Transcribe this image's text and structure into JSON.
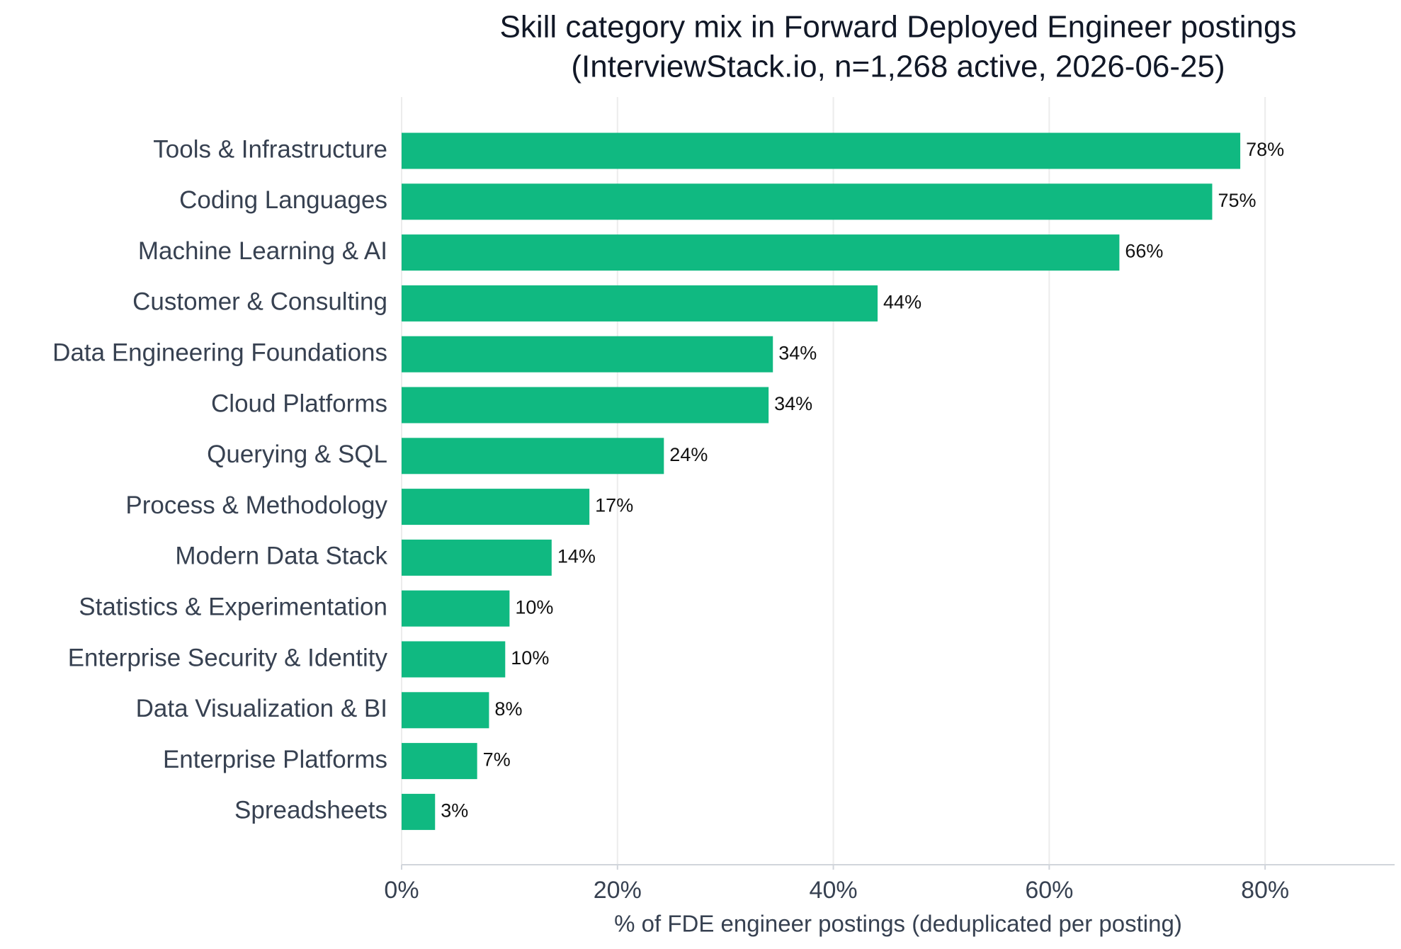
{
  "chart_data": {
    "type": "barh",
    "title": "Skill category mix in Forward Deployed Engineer postings",
    "subtitle": "(InterviewStack.io, n=1,268 active, 2026-06-25)",
    "xlabel": "% of FDE engineer postings (deduplicated per posting)",
    "categories": [
      "Tools & Infrastructure",
      "Coding Languages",
      "Machine Learning & AI",
      "Customer & Consulting",
      "Data Engineering Foundations",
      "Cloud Platforms",
      "Querying & SQL",
      "Process & Methodology",
      "Modern Data Stack",
      "Statistics & Experimentation",
      "Enterprise Security & Identity",
      "Data Visualization & BI",
      "Enterprise Platforms",
      "Spreadsheets"
    ],
    "values": [
      77.7,
      75.1,
      66.5,
      44.1,
      34.4,
      34.0,
      24.3,
      17.4,
      13.9,
      10.0,
      9.6,
      8.1,
      7.0,
      3.1
    ],
    "value_labels": [
      "78%",
      "75%",
      "66%",
      "44%",
      "34%",
      "34%",
      "24%",
      "17%",
      "14%",
      "10%",
      "10%",
      "8%",
      "7%",
      "3%"
    ],
    "color": "#10b981",
    "xlim": [
      0,
      92
    ],
    "xticks": [
      {
        "value": 0,
        "label": "0%"
      },
      {
        "value": 20,
        "label": "20%"
      },
      {
        "value": 40,
        "label": "40%"
      },
      {
        "value": 60,
        "label": "60%"
      },
      {
        "value": 80,
        "label": "80%"
      }
    ],
    "grid": true
  }
}
